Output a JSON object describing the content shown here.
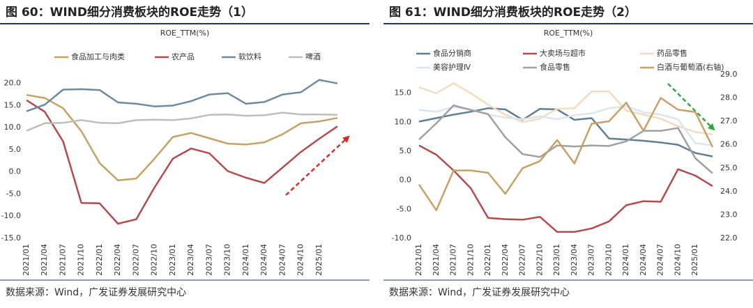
{
  "chart_data": [
    {
      "type": "line",
      "title": "图 60：WIND细分消费板块的ROE走势（1）",
      "ylabel": "ROE_TTM(%)",
      "source": "数据来源：Wind，广发证券发展研究中心",
      "categories": [
        "2021/01",
        "2021/04",
        "2021/07",
        "2021/10",
        "2022/01",
        "2022/04",
        "2022/07",
        "2022/10",
        "2023/01",
        "2023/04",
        "2023/07",
        "2023/10",
        "2024/01",
        "2024/04",
        "2024/07",
        "2024/10",
        "2025/01",
        null
      ],
      "ylim": [
        -15,
        22
      ],
      "yticks": [
        {
          "value": -15,
          "label": "-15.0"
        },
        {
          "value": -10,
          "label": "-10.0"
        },
        {
          "value": -5,
          "label": "-5.0"
        },
        {
          "value": 0,
          "label": "0.0"
        },
        {
          "value": 5,
          "label": "5.0"
        },
        {
          "value": 10,
          "label": "10.0"
        },
        {
          "value": 15,
          "label": "15.0"
        },
        {
          "value": 20,
          "label": "20.0"
        }
      ],
      "series": [
        {
          "name": "食品加工与肉类",
          "color": "#c8a064",
          "values": [
            17.4,
            16.7,
            14.4,
            9.2,
            2.0,
            -1.9,
            -1.5,
            3.0,
            7.9,
            8.8,
            7.6,
            6.4,
            6.2,
            6.7,
            8.5,
            11.0,
            11.4,
            12.2
          ]
        },
        {
          "name": "农产品",
          "color": "#b5494c",
          "values": [
            16.2,
            13.6,
            6.9,
            -7.0,
            -7.1,
            -11.7,
            -10.7,
            -3.5,
            3.0,
            5.3,
            4.2,
            0.2,
            -1.3,
            -2.5,
            1.0,
            4.5,
            7.5,
            10.3
          ]
        },
        {
          "name": "软饮料",
          "color": "#6d8aa0",
          "values": [
            13.7,
            15.2,
            18.6,
            18.7,
            18.5,
            15.7,
            15.4,
            14.8,
            15.0,
            16.0,
            17.5,
            17.8,
            15.4,
            15.8,
            17.5,
            18.0,
            20.8,
            20.0
          ]
        },
        {
          "name": "啤酒",
          "color": "#bdbdbd",
          "values": [
            9.3,
            11.0,
            11.1,
            11.7,
            11.1,
            11.0,
            11.7,
            11.8,
            11.7,
            12.1,
            12.9,
            13.0,
            12.7,
            12.8,
            13.4,
            13.0,
            13.0,
            12.9
          ]
        }
      ]
    },
    {
      "type": "line",
      "title": "图 61：WIND细分消费板块的ROE走势（2）",
      "ylabel": "ROE_TTM(%)",
      "source": "数据来源：Wind，广发证券发展研究中心",
      "categories": [
        "2021/01",
        "2021/04",
        "2021/07",
        "2021/10",
        "2022/01",
        "2022/04",
        "2022/07",
        "2022/10",
        "2023/01",
        "2023/04",
        "2023/07",
        "2023/10",
        "2024/01",
        "2024/04",
        "2024/07",
        "2024/10",
        "2025/01",
        null
      ],
      "ylim": [
        -10,
        18.2
      ],
      "yticks": [
        {
          "value": -10,
          "label": "-10.0"
        },
        {
          "value": -5,
          "label": "-5.0"
        },
        {
          "value": 0,
          "label": "0.0"
        },
        {
          "value": 5,
          "label": "5.0"
        },
        {
          "value": 10,
          "label": "10.0"
        },
        {
          "value": 15,
          "label": "15.0"
        }
      ],
      "y2lim": [
        22,
        29
      ],
      "y2ticks": [
        {
          "value": 22,
          "label": "22.0"
        },
        {
          "value": 23,
          "label": "23.0"
        },
        {
          "value": 24,
          "label": "24.0"
        },
        {
          "value": 25,
          "label": "25.0"
        },
        {
          "value": 26,
          "label": "26.0"
        },
        {
          "value": 27,
          "label": "27.0"
        },
        {
          "value": 28,
          "label": "28.0"
        },
        {
          "value": 29,
          "label": "29.0"
        }
      ],
      "series": [
        {
          "name": "食品分销商",
          "color": "#5f7f95",
          "values": [
            10.1,
            10.7,
            11.3,
            11.8,
            12.4,
            12.2,
            10.4,
            12.3,
            12.2,
            10.4,
            10.7,
            7.2,
            7.0,
            6.8,
            6.5,
            6.1,
            4.7,
            4.1
          ]
        },
        {
          "name": "大卖场与超市",
          "color": "#b5494c",
          "values": [
            6.0,
            4.4,
            1.7,
            -1.4,
            -6.5,
            -6.7,
            -6.8,
            -6.3,
            -8.9,
            -8.9,
            -8.3,
            -7.1,
            -4.3,
            -3.6,
            -3.7,
            1.9,
            0.8,
            -1.0
          ]
        },
        {
          "name": "药品零售",
          "color": "#f2dcc0",
          "values": [
            16.0,
            15.0,
            16.7,
            15.0,
            13.0,
            11.3,
            10.0,
            10.6,
            12.3,
            12.4,
            15.3,
            15.3,
            12.0,
            11.3,
            10.6,
            9.3,
            8.3,
            7.9
          ]
        },
        {
          "name": "美容护理Ⅳ",
          "color": "#dbe5f1",
          "values": [
            12.1,
            11.8,
            12.6,
            12.2,
            11.3,
            10.8,
            10.5,
            11.0,
            10.5,
            11.2,
            11.5,
            12.4,
            12.7,
            11.7,
            11.3,
            10.5,
            6.4,
            6.0
          ]
        },
        {
          "name": "食品零售",
          "color": "#a0a0a0",
          "values": [
            7.0,
            9.8,
            12.9,
            12.1,
            11.4,
            7.4,
            4.5,
            4.0,
            6.0,
            5.8,
            6.0,
            5.9,
            6.7,
            8.5,
            8.5,
            9.0,
            3.8,
            1.2
          ]
        },
        {
          "name": "白酒与葡萄酒(右轴)",
          "color": "#c8a064",
          "axis": "y2",
          "values": [
            24.3,
            23.2,
            24.9,
            24.9,
            24.8,
            23.9,
            25.0,
            25.3,
            26.2,
            25.2,
            26.9,
            27.0,
            27.8,
            26.6,
            28.0,
            27.5,
            27.4,
            25.9
          ]
        }
      ]
    }
  ]
}
